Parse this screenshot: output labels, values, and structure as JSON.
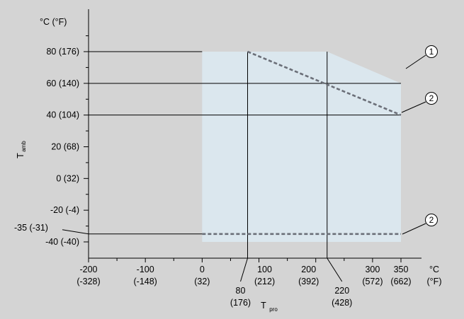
{
  "colors": {
    "background": "#d4d4d4",
    "operating_region": "#dbe7ee",
    "axis": "#000000",
    "dashed_limit": "#6b6f78"
  },
  "chart_data": {
    "type": "area",
    "title": "",
    "xlabel": "T",
    "xlabel_subscript": "pro",
    "ylabel": "T",
    "ylabel_subscript": "amb",
    "xlim": [
      -200,
      350
    ],
    "ylim": [
      -50,
      100
    ],
    "x_unit_label": "°C",
    "x_unit_label_alt": "(°F)",
    "y_unit_label": "°C (°F)",
    "x_tick_labels": [
      {
        "x": -200,
        "c": "-200",
        "f": "(-328)"
      },
      {
        "x": -100,
        "c": "-100",
        "f": "(-148)"
      },
      {
        "x": 0,
        "c": "0",
        "f": "(32)"
      },
      {
        "x": 100,
        "c": "100",
        "f": "(212)"
      },
      {
        "x": 200,
        "c": "200",
        "f": "(392)"
      },
      {
        "x": 300,
        "c": "300",
        "f": "(572)"
      },
      {
        "x": 350,
        "c": "350",
        "f": "(662)"
      }
    ],
    "x_minor_ticks": [
      -150,
      -50,
      50,
      150,
      250
    ],
    "x_marker_labels": [
      {
        "x": 80,
        "c": "80",
        "f": "(176)"
      },
      {
        "x": 220,
        "c": "220",
        "f": "(428)"
      }
    ],
    "y_tick_labels": [
      {
        "y": 80,
        "label": "80 (176)"
      },
      {
        "y": 60,
        "label": "60 (140)"
      },
      {
        "y": 40,
        "label": "40 (104)"
      },
      {
        "y": 20,
        "label": "20 (68)"
      },
      {
        "y": 0,
        "label": "0 (32)"
      },
      {
        "y": -20,
        "label": "-20 (-4)"
      },
      {
        "y": -40,
        "label": "-40 (-40)"
      }
    ],
    "y_marker_labels": [
      {
        "y": -35,
        "label": "-35 (-31)"
      }
    ],
    "y_minor_ticks": [
      90,
      70,
      50,
      30,
      10,
      -10,
      -30
    ],
    "reference_lines": {
      "horizontal": [
        80,
        60,
        40,
        -35
      ],
      "vertical": [
        80,
        220
      ]
    },
    "series": [
      {
        "kind": "region",
        "callout": "1",
        "points": [
          [
            0,
            -40
          ],
          [
            0,
            80
          ],
          [
            220,
            80
          ],
          [
            350,
            60
          ],
          [
            350,
            -40
          ]
        ]
      },
      {
        "kind": "dashed-limit",
        "callout": "2",
        "points": [
          [
            80,
            80
          ],
          [
            350,
            40
          ]
        ]
      },
      {
        "kind": "dashed-limit",
        "callout": "2",
        "points": [
          [
            0,
            -35
          ],
          [
            350,
            -35
          ]
        ]
      }
    ],
    "callouts": [
      {
        "label": "1",
        "target": [
          350,
          60
        ]
      },
      {
        "label": "2",
        "target": [
          350,
          40
        ]
      },
      {
        "label": "2",
        "target": [
          350,
          -35
        ]
      }
    ]
  }
}
